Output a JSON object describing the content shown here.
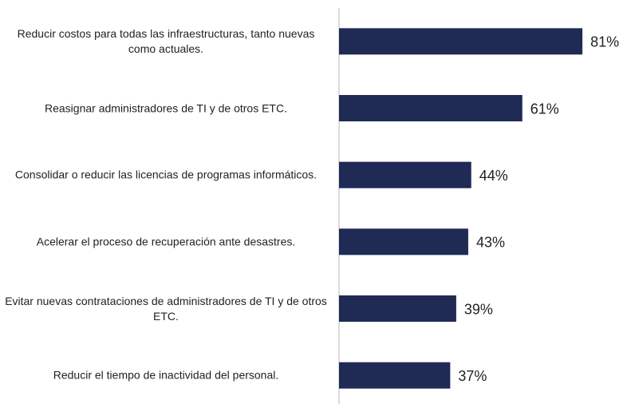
{
  "chart_data": {
    "type": "bar",
    "orientation": "horizontal",
    "categories": [
      "Reducir costos para todas las infraestructuras, tanto nuevas como actuales.",
      "Reasignar administradores de TI y de otros ETC.",
      "Consolidar o reducir las licencias de programas informáticos.",
      "Acelerar el proceso de recuperación ante desastres.",
      "Evitar nuevas contrataciones de administradores de TI y de otros ETC.",
      "Reducir el tiempo de inactividad del personal."
    ],
    "values": [
      81,
      61,
      44,
      43,
      39,
      37
    ],
    "value_labels": [
      "81%",
      "61%",
      "44%",
      "43%",
      "39%",
      "37%"
    ],
    "color": "#1f2a55",
    "xlim": [
      0,
      90
    ]
  }
}
